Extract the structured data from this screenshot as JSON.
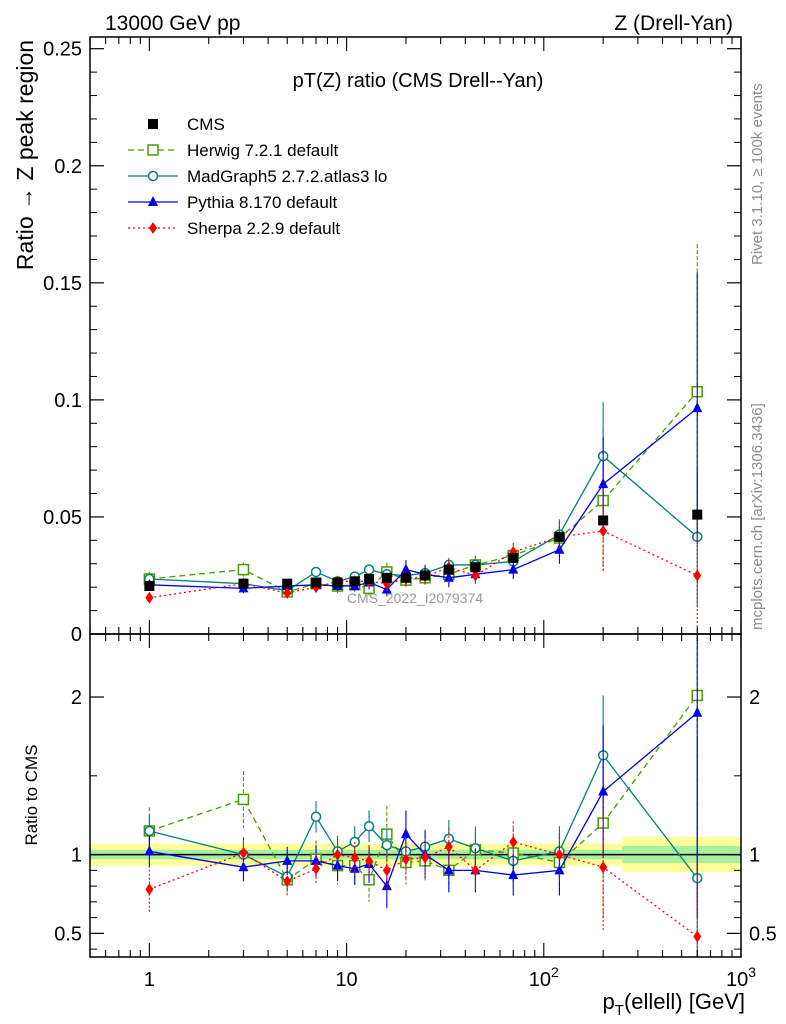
{
  "header": {
    "left": "13000 GeV pp",
    "right": "Z (Drell-Yan)"
  },
  "side_labels": {
    "rivet": "Rivet 3.1.10, ≥ 100k events",
    "mcplots": "mcplots.cern.ch [arXiv:1306.3436]"
  },
  "chart_data": [
    {
      "type": "scatter",
      "title": "pT(Z) ratio (CMS Drell--Yan)",
      "watermark": "CMS_2022_I2079374",
      "xlabel": "p_T(ellell) [GeV]",
      "ylabel": "Ratio → Z peak region",
      "x_scale": "log",
      "xlim": [
        0.5,
        1000
      ],
      "ylim": [
        0,
        0.255
      ],
      "yticks": [
        0,
        0.05,
        0.1,
        0.15,
        0.2,
        0.25
      ],
      "ytick_labels": [
        "0",
        "0.05",
        "0.1",
        "0.15",
        "0.2",
        "0.25"
      ],
      "xtick_labels": [
        "1",
        "10",
        "10^2",
        "10^3"
      ],
      "legend_position": "top-left",
      "series": [
        {
          "name": "CMS",
          "color": "#000000",
          "marker": "filled-square",
          "line": "none",
          "x": [
            1,
            3,
            5,
            7,
            9,
            11,
            13,
            16,
            20,
            25,
            33,
            45,
            70,
            120,
            200,
            600
          ],
          "y": [
            0.0205,
            0.0215,
            0.0215,
            0.022,
            0.022,
            0.0225,
            0.0235,
            0.024,
            0.024,
            0.025,
            0.0275,
            0.0285,
            0.0325,
            0.0415,
            0.0485,
            0.051
          ]
        },
        {
          "name": "Herwig 7.2.1 default",
          "color": "#4c9a00",
          "marker": "open-square",
          "line": "dashed",
          "x": [
            1,
            3,
            5,
            7,
            9,
            11,
            13,
            16,
            20,
            25,
            33,
            45,
            70,
            120,
            200,
            600
          ],
          "y": [
            0.0235,
            0.0275,
            0.018,
            0.0215,
            0.0205,
            0.021,
            0.0195,
            0.0265,
            0.023,
            0.024,
            0.0255,
            0.0295,
            0.0335,
            0.041,
            0.057,
            0.1035
          ],
          "yerr": [
            0.003,
            0.003,
            0.002,
            0.003,
            0.003,
            0.003,
            0.003,
            0.004,
            0.003,
            0.003,
            0.003,
            0.004,
            0.005,
            0.008,
            0.03,
            0.063
          ]
        },
        {
          "name": "MadGraph5 2.7.2.atlas3 lo",
          "color": "#007f7f",
          "marker": "open-circle",
          "line": "solid",
          "x": [
            1,
            3,
            5,
            7,
            9,
            11,
            13,
            16,
            20,
            25,
            33,
            45,
            70,
            120,
            200,
            600
          ],
          "y": [
            0.0235,
            0.0215,
            0.0185,
            0.0265,
            0.0225,
            0.0245,
            0.0275,
            0.0255,
            0.025,
            0.026,
            0.0295,
            0.0295,
            0.031,
            0.0425,
            0.076,
            0.0415
          ],
          "yerr": [
            0.002,
            0.002,
            0.002,
            0.002,
            0.002,
            0.002,
            0.002,
            0.002,
            0.003,
            0.003,
            0.003,
            0.003,
            0.004,
            0.006,
            0.023,
            0.03
          ]
        },
        {
          "name": "Pythia 8.170 default",
          "color": "#0000ee",
          "marker": "filled-triangle",
          "line": "solid",
          "x": [
            1,
            3,
            5,
            7,
            9,
            11,
            13,
            16,
            20,
            25,
            33,
            45,
            70,
            120,
            200,
            600
          ],
          "y": [
            0.021,
            0.0195,
            0.0205,
            0.021,
            0.0205,
            0.0205,
            0.022,
            0.019,
            0.0275,
            0.0255,
            0.024,
            0.0255,
            0.0275,
            0.036,
            0.064,
            0.0965
          ],
          "yerr": [
            0.002,
            0.002,
            0.002,
            0.002,
            0.002,
            0.002,
            0.003,
            0.003,
            0.004,
            0.004,
            0.004,
            0.004,
            0.004,
            0.006,
            0.02,
            0.058
          ]
        },
        {
          "name": "Sherpa 2.2.9 default",
          "color": "#ff0000",
          "marker": "filled-diamond",
          "line": "dotted",
          "x": [
            1,
            3,
            5,
            7,
            9,
            11,
            13,
            16,
            20,
            25,
            33,
            45,
            70,
            120,
            200,
            600
          ],
          "y": [
            0.0155,
            0.0215,
            0.0175,
            0.02,
            0.0225,
            0.0225,
            0.0225,
            0.0215,
            0.0235,
            0.0245,
            0.0285,
            0.025,
            0.035,
            0.0415,
            0.044,
            0.025
          ],
          "yerr": [
            0.002,
            0.002,
            0.002,
            0.002,
            0.002,
            0.002,
            0.002,
            0.003,
            0.003,
            0.003,
            0.003,
            0.003,
            0.004,
            0.006,
            0.018,
            0.025
          ]
        }
      ]
    },
    {
      "type": "scatter",
      "xlabel": "p_T(ellell) [GeV]",
      "ylabel": "Ratio to CMS",
      "x_scale": "log",
      "xlim": [
        0.5,
        1000
      ],
      "ylim": [
        0.35,
        2.4
      ],
      "yticks": [
        0.5,
        1,
        2
      ],
      "ytick_labels": [
        "0.5",
        "1",
        "2"
      ],
      "reference_band": {
        "value": 1,
        "inner": 0.03,
        "outer": 0.07,
        "color_inner": "#a8f0a0",
        "color_outer": "#ffff99"
      },
      "series": [
        {
          "name": "Herwig 7.2.1 default",
          "color": "#4c9a00",
          "marker": "open-square",
          "line": "dashed",
          "x": [
            1,
            3,
            5,
            7,
            9,
            11,
            13,
            16,
            20,
            25,
            33,
            45,
            70,
            120,
            200,
            600
          ],
          "y": [
            1.15,
            1.35,
            0.84,
            0.97,
            0.93,
            0.93,
            0.84,
            1.13,
            0.95,
            0.96,
            0.9,
            1.03,
            1.01,
            0.95,
            1.2,
            2.01
          ],
          "yerr": [
            0.15,
            0.18,
            0.1,
            0.12,
            0.12,
            0.13,
            0.14,
            0.18,
            0.14,
            0.13,
            0.12,
            0.15,
            0.16,
            0.18,
            0.6,
            1.3
          ]
        },
        {
          "name": "MadGraph5 2.7.2.atlas3 lo",
          "color": "#007f7f",
          "marker": "open-circle",
          "line": "solid",
          "x": [
            1,
            3,
            5,
            7,
            9,
            11,
            13,
            16,
            20,
            25,
            33,
            45,
            70,
            120,
            200,
            600
          ],
          "y": [
            1.15,
            1.0,
            0.86,
            1.24,
            1.02,
            1.08,
            1.18,
            1.06,
            1.02,
            1.05,
            1.1,
            1.04,
            0.96,
            1.02,
            1.63,
            0.85
          ],
          "yerr": [
            0.1,
            0.1,
            0.08,
            0.1,
            0.1,
            0.1,
            0.1,
            0.1,
            0.11,
            0.11,
            0.12,
            0.12,
            0.13,
            0.16,
            0.38,
            0.9
          ]
        },
        {
          "name": "Pythia 8.170 default",
          "color": "#0000ee",
          "marker": "filled-triangle",
          "line": "solid",
          "x": [
            1,
            3,
            5,
            7,
            9,
            11,
            13,
            16,
            20,
            25,
            33,
            45,
            70,
            120,
            200,
            600
          ],
          "y": [
            1.02,
            0.92,
            0.96,
            0.96,
            0.93,
            0.91,
            0.94,
            0.8,
            1.13,
            1.0,
            0.9,
            0.9,
            0.87,
            0.9,
            1.4,
            1.9
          ],
          "yerr": [
            0.1,
            0.09,
            0.09,
            0.1,
            0.1,
            0.1,
            0.12,
            0.14,
            0.15,
            0.15,
            0.14,
            0.14,
            0.13,
            0.16,
            0.42,
            1.3
          ]
        },
        {
          "name": "Sherpa 2.2.9 default",
          "color": "#ff0000",
          "marker": "filled-diamond",
          "line": "dotted",
          "x": [
            1,
            3,
            5,
            7,
            9,
            11,
            13,
            16,
            20,
            25,
            33,
            45,
            70,
            120,
            200,
            600
          ],
          "y": [
            0.78,
            1.01,
            0.83,
            0.91,
            1.0,
            0.98,
            0.96,
            0.9,
            0.97,
            0.98,
            1.05,
            0.9,
            1.08,
            1.0,
            0.92,
            0.48
          ],
          "yerr": [
            0.15,
            0.1,
            0.08,
            0.1,
            0.1,
            0.1,
            0.1,
            0.12,
            0.12,
            0.12,
            0.12,
            0.12,
            0.13,
            0.16,
            0.4,
            0.5
          ]
        }
      ]
    }
  ]
}
